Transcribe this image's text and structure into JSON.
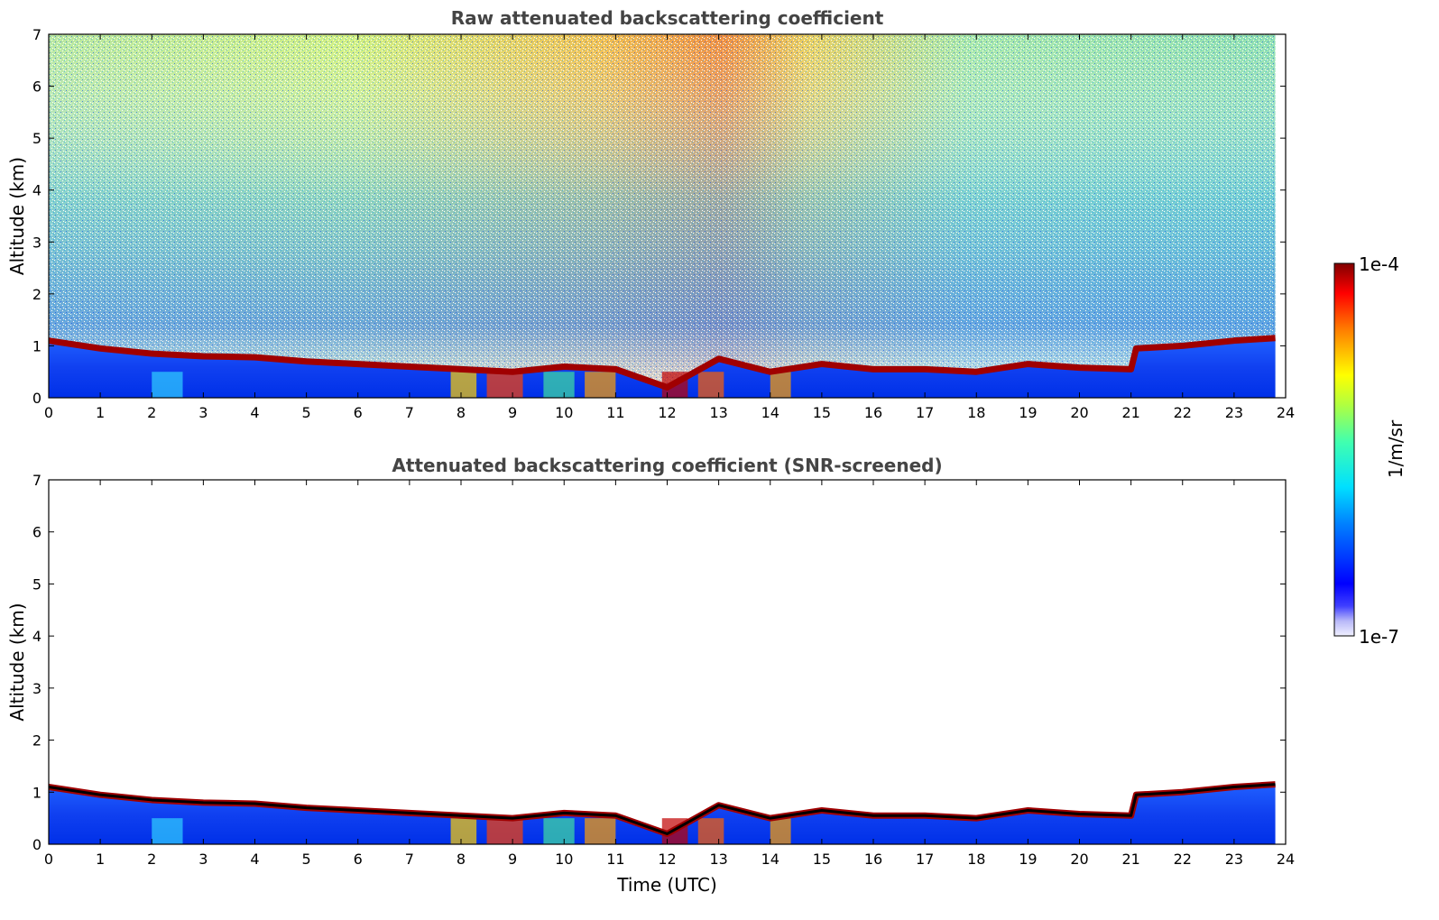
{
  "chart_data": [
    {
      "type": "heatmap",
      "title": "Raw attenuated backscattering coefficient",
      "xlabel": "",
      "ylabel": "Altitude (km)",
      "xlim": [
        0,
        24
      ],
      "ylim": [
        0,
        7
      ],
      "xticks": [
        "0",
        "1",
        "2",
        "3",
        "4",
        "5",
        "6",
        "7",
        "8",
        "9",
        "10",
        "11",
        "12",
        "13",
        "14",
        "15",
        "16",
        "17",
        "18",
        "19",
        "20",
        "21",
        "22",
        "23",
        "24"
      ],
      "yticks": [
        "0",
        "1",
        "2",
        "3",
        "4",
        "5",
        "6",
        "7"
      ],
      "boundary_layer_top_km": {
        "time": [
          0,
          1,
          2,
          3,
          4,
          5,
          6,
          7,
          8,
          9,
          10,
          11,
          12,
          13,
          14,
          15,
          16,
          17,
          18,
          19,
          20,
          21,
          21.1,
          22,
          23,
          23.8
        ],
        "altitude": [
          1.1,
          0.95,
          0.85,
          0.8,
          0.78,
          0.7,
          0.65,
          0.6,
          0.55,
          0.5,
          0.6,
          0.55,
          0.2,
          0.75,
          0.5,
          0.65,
          0.55,
          0.55,
          0.5,
          0.65,
          0.58,
          0.55,
          0.95,
          1.0,
          1.1,
          1.15
        ]
      },
      "noise": true
    },
    {
      "type": "heatmap",
      "title": "Attenuated backscattering coefficient (SNR-screened)",
      "xlabel": "Time (UTC)",
      "ylabel": "Altitude (km)",
      "xlim": [
        0,
        24
      ],
      "ylim": [
        0,
        7
      ],
      "xticks": [
        "0",
        "1",
        "2",
        "3",
        "4",
        "5",
        "6",
        "7",
        "8",
        "9",
        "10",
        "11",
        "12",
        "13",
        "14",
        "15",
        "16",
        "17",
        "18",
        "19",
        "20",
        "21",
        "22",
        "23",
        "24"
      ],
      "yticks": [
        "0",
        "1",
        "2",
        "3",
        "4",
        "5",
        "6",
        "7"
      ],
      "boundary_layer_top_km": {
        "time": [
          0,
          1,
          2,
          3,
          4,
          5,
          6,
          7,
          8,
          9,
          10,
          11,
          12,
          13,
          14,
          15,
          16,
          17,
          18,
          19,
          20,
          21,
          21.1,
          22,
          23,
          23.8
        ],
        "altitude": [
          1.1,
          0.95,
          0.85,
          0.8,
          0.78,
          0.7,
          0.65,
          0.6,
          0.55,
          0.5,
          0.6,
          0.55,
          0.2,
          0.75,
          0.5,
          0.65,
          0.55,
          0.55,
          0.5,
          0.65,
          0.58,
          0.55,
          0.95,
          1.0,
          1.1,
          1.15
        ]
      },
      "noise": false
    }
  ],
  "colorbar": {
    "label": "1/m/sr",
    "max_label": "1e-4",
    "min_label": "1e-7",
    "scale": "log"
  }
}
